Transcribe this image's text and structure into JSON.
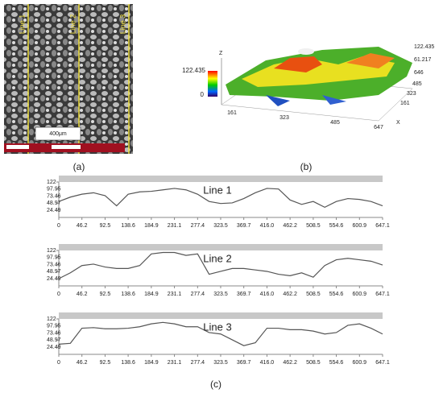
{
  "panel_a": {
    "label": "(a)",
    "lines": [
      "Line 1",
      "Line 2",
      "Line 3"
    ],
    "scale_bar": "400μm"
  },
  "panel_b": {
    "label": "(b)",
    "colorbar_max": "122.435",
    "colorbar_min": "0",
    "z_axis": "Z",
    "x_axis": "X",
    "x_ticks": [
      "161",
      "323",
      "485",
      "647"
    ],
    "z_ticks": [
      "122.435",
      "61.217"
    ],
    "y_ticks": [
      "646",
      "485",
      "323",
      "161"
    ]
  },
  "panel_c": {
    "label": "(c)"
  },
  "chart_data": [
    {
      "type": "line",
      "title": "Line 1",
      "color": "#555555",
      "x": [
        0,
        23.1,
        46.2,
        69.3,
        92.5,
        115.5,
        138.6,
        161.7,
        184.9,
        208,
        231.1,
        254.2,
        277.4,
        300.4,
        323.5,
        346.6,
        369.7,
        392.8,
        416,
        439.1,
        462.2,
        485.3,
        508.5,
        531.5,
        554.6,
        577.7,
        600.9,
        624,
        647.1
      ],
      "values": [
        55,
        70,
        80,
        85,
        75,
        40,
        80,
        88,
        90,
        95,
        100,
        95,
        80,
        55,
        48,
        50,
        65,
        85,
        100,
        98,
        60,
        45,
        55,
        35,
        55,
        65,
        62,
        55,
        40
      ],
      "xlim": [
        0,
        647.1
      ],
      "ylim": [
        0,
        122
      ],
      "xticks": [
        0,
        46.2,
        92.5,
        138.6,
        184.9,
        231.1,
        277.4,
        323.5,
        369.7,
        {
          "value": 416,
          "label": "416.0"
        },
        462.2,
        508.5,
        554.6,
        600.9,
        647.1
      ],
      "yticks": [
        24.49,
        48.97,
        73.46,
        97.95,
        122
      ]
    },
    {
      "type": "line",
      "title": "Line 2",
      "color": "#555555",
      "x": [
        0,
        23.1,
        46.2,
        69.3,
        92.5,
        115.5,
        138.6,
        161.7,
        184.9,
        208,
        231.1,
        254.2,
        277.4,
        300.4,
        323.5,
        346.6,
        369.7,
        392.8,
        416,
        439.1,
        462.2,
        485.3,
        508.5,
        531.5,
        554.6,
        577.7,
        600.9,
        624,
        647.1
      ],
      "values": [
        25,
        45,
        70,
        75,
        65,
        60,
        60,
        70,
        110,
        115,
        115,
        105,
        110,
        40,
        50,
        60,
        60,
        55,
        50,
        40,
        35,
        45,
        30,
        70,
        90,
        95,
        90,
        85,
        72
      ],
      "xlim": [
        0,
        647.1
      ],
      "ylim": [
        0,
        122
      ],
      "xticks": [
        0,
        46.2,
        92.5,
        138.6,
        184.9,
        231.1,
        277.4,
        323.5,
        369.7,
        {
          "value": 416,
          "label": "416.0"
        },
        462.2,
        508.5,
        554.6,
        600.9,
        647.1
      ],
      "yticks": [
        24.49,
        48.97,
        73.46,
        97.95,
        122
      ]
    },
    {
      "type": "line",
      "title": "Line 3",
      "color": "#555555",
      "x": [
        0,
        23.1,
        46.2,
        69.3,
        92.5,
        115.5,
        138.6,
        161.7,
        184.9,
        208,
        231.1,
        254.2,
        277.4,
        300.4,
        323.5,
        346.6,
        369.7,
        392.8,
        416,
        439.1,
        462.2,
        485.3,
        508.5,
        531.5,
        554.6,
        577.7,
        600.9,
        624,
        647.1
      ],
      "values": [
        35,
        38,
        90,
        92,
        88,
        88,
        90,
        95,
        105,
        110,
        105,
        95,
        95,
        75,
        70,
        50,
        30,
        40,
        90,
        90,
        85,
        85,
        80,
        70,
        75,
        100,
        105,
        90,
        70
      ],
      "xlim": [
        0,
        647.1
      ],
      "ylim": [
        0,
        122
      ],
      "xticks": [
        0,
        46.2,
        92.5,
        138.6,
        184.9,
        231.1,
        277.4,
        323.5,
        369.7,
        {
          "value": 416,
          "label": "416.0"
        },
        462.2,
        508.5,
        554.6,
        600.9,
        647.1
      ],
      "yticks": [
        24.49,
        48.97,
        73.46,
        97.95,
        122
      ]
    }
  ]
}
